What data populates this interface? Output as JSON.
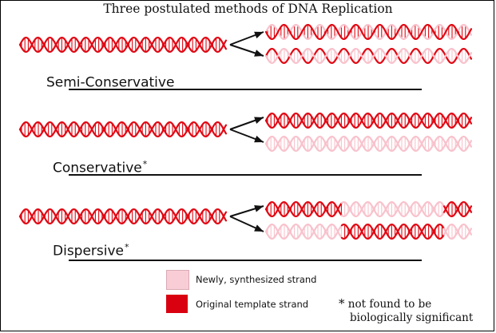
{
  "title": "Three postulated methods of DNA Replication",
  "colors": {
    "original": "#e00813",
    "new": "#f8c2cc",
    "legend_new": "#f8cdd5",
    "legend_original": "#d9000f",
    "arrow": "#111111"
  },
  "methods": [
    {
      "label": "Semi-Conservative",
      "asterisk": ""
    },
    {
      "label": "Conservative",
      "asterisk": "*"
    },
    {
      "label": "Dispersive",
      "asterisk": "*"
    }
  ],
  "legend": {
    "new_label": "Newly, synthesized strand",
    "original_label": "Original template strand"
  },
  "footnote": {
    "star": "*",
    "line1": "not found to be",
    "line2": "biologically significant"
  }
}
